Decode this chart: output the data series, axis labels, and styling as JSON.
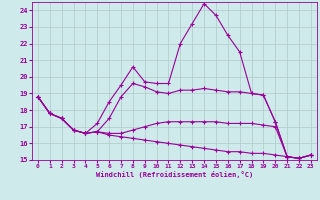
{
  "xlabel": "Windchill (Refroidissement éolien,°C)",
  "bg_color": "#ceeaea",
  "line_color": "#990099",
  "grid_color": "#b0c8c8",
  "xlim": [
    -0.5,
    23.5
  ],
  "ylim": [
    15,
    24.5
  ],
  "yticks": [
    15,
    16,
    17,
    18,
    19,
    20,
    21,
    22,
    23,
    24
  ],
  "xticks": [
    0,
    1,
    2,
    3,
    4,
    5,
    6,
    7,
    8,
    9,
    10,
    11,
    12,
    13,
    14,
    15,
    16,
    17,
    18,
    19,
    20,
    21,
    22,
    23
  ],
  "series": [
    [
      18.8,
      17.8,
      17.5,
      16.8,
      16.6,
      17.2,
      18.5,
      19.5,
      20.6,
      19.7,
      19.6,
      19.6,
      22.0,
      23.2,
      24.4,
      23.7,
      22.5,
      21.5,
      19.0,
      18.9,
      17.3,
      15.2,
      15.1,
      15.3
    ],
    [
      18.8,
      17.8,
      17.5,
      16.8,
      16.6,
      16.7,
      17.5,
      18.8,
      19.6,
      19.4,
      19.1,
      19.0,
      19.2,
      19.2,
      19.3,
      19.2,
      19.1,
      19.1,
      19.0,
      18.9,
      17.3,
      15.2,
      15.1,
      15.3
    ],
    [
      18.8,
      17.8,
      17.5,
      16.8,
      16.6,
      16.7,
      16.6,
      16.6,
      16.8,
      17.0,
      17.2,
      17.3,
      17.3,
      17.3,
      17.3,
      17.3,
      17.2,
      17.2,
      17.2,
      17.1,
      17.0,
      15.2,
      15.1,
      15.3
    ],
    [
      18.8,
      17.8,
      17.5,
      16.8,
      16.6,
      16.7,
      16.5,
      16.4,
      16.3,
      16.2,
      16.1,
      16.0,
      15.9,
      15.8,
      15.7,
      15.6,
      15.5,
      15.5,
      15.4,
      15.4,
      15.3,
      15.2,
      15.1,
      15.3
    ]
  ]
}
